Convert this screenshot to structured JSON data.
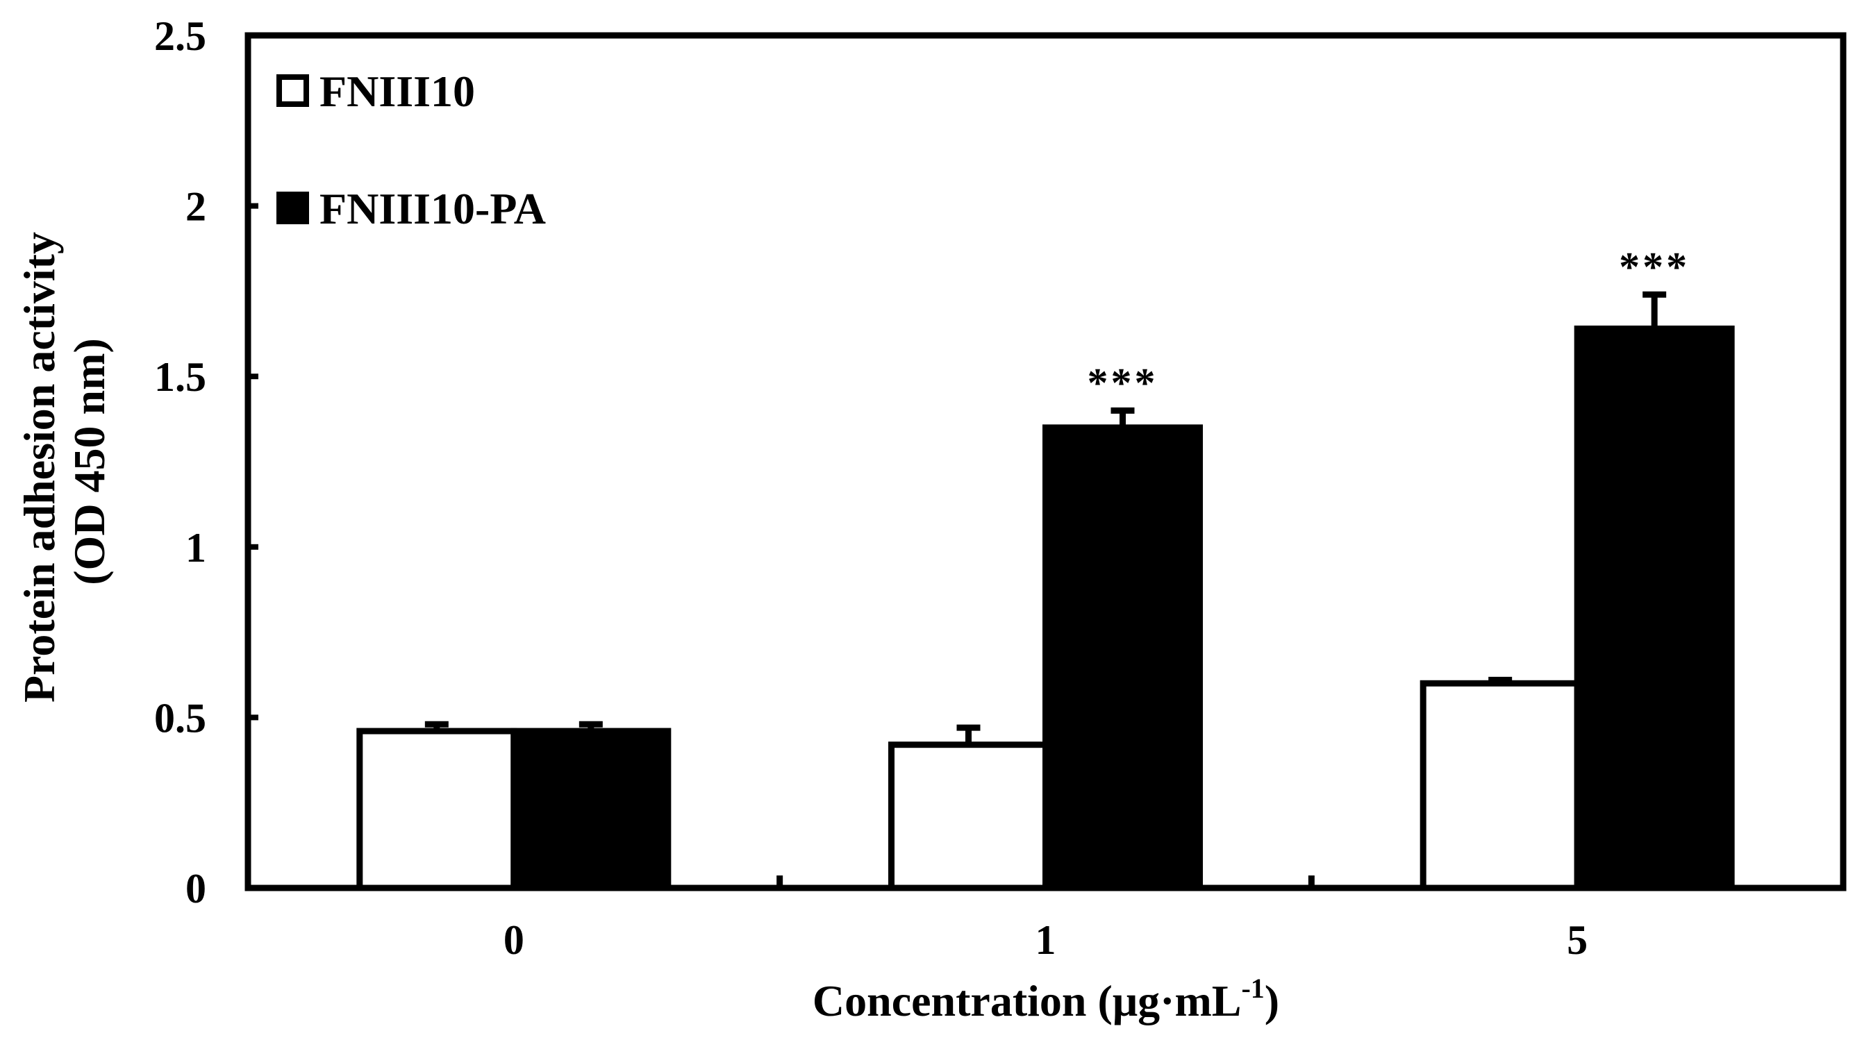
{
  "chart_data": {
    "type": "bar",
    "title": "",
    "xlabel": "Concentration (μg·mL",
    "xlabel_superscript": "-1",
    "xlabel_suffix": ")",
    "ylabel_line1": "Protein adhesion activity",
    "ylabel_line2": "(OD 450 nm)",
    "ylim": [
      0,
      2.5
    ],
    "yticks": [
      "0",
      "0.5",
      "1",
      "1.5",
      "2",
      "2.5"
    ],
    "ytick_values": [
      0,
      0.5,
      1,
      1.5,
      2,
      2.5
    ],
    "categories": [
      "0",
      "1",
      "5"
    ],
    "series": [
      {
        "name": "FNIII10",
        "color": "#ffffff",
        "values": [
          0.46,
          0.42,
          0.6
        ],
        "errors": [
          0.02,
          0.05,
          0.01
        ],
        "annotations": [
          "",
          "",
          ""
        ]
      },
      {
        "name": "FNIII10-PA",
        "color": "#000000",
        "values": [
          0.46,
          1.35,
          1.64
        ],
        "errors": [
          0.02,
          0.05,
          0.1
        ],
        "annotations": [
          "",
          "***",
          "***"
        ]
      }
    ],
    "legend_position": "top-left",
    "grid": false
  }
}
